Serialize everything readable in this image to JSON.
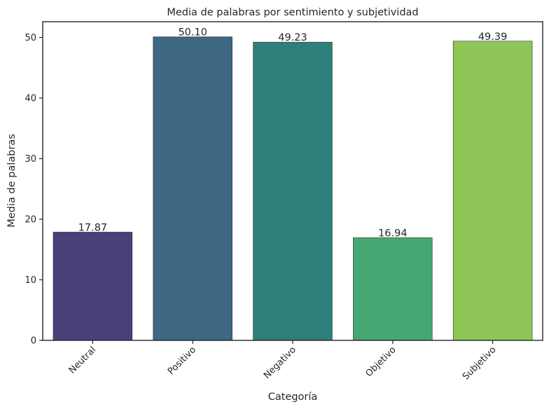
{
  "chart_data": {
    "type": "bar",
    "title": "Media de palabras por sentimiento y subjetividad",
    "xlabel": "Categoría",
    "ylabel": "Media de palabras",
    "categories": [
      "Neutral",
      "Positivo",
      "Negativo",
      "Objetivo",
      "Subjetivo"
    ],
    "values": [
      17.87,
      50.1,
      49.23,
      16.94,
      49.39
    ],
    "value_labels": [
      "17.87",
      "50.10",
      "49.23",
      "16.94",
      "49.39"
    ],
    "colors": [
      "#4b3f7a",
      "#3d6782",
      "#2d8079",
      "#45a872",
      "#8ec657"
    ],
    "ylim": [
      0,
      52.6
    ],
    "yticks": [
      0,
      10,
      20,
      30,
      40,
      50
    ],
    "ytick_labels": [
      "0",
      "10",
      "20",
      "30",
      "40",
      "50"
    ],
    "grid": false,
    "legend": "none"
  }
}
